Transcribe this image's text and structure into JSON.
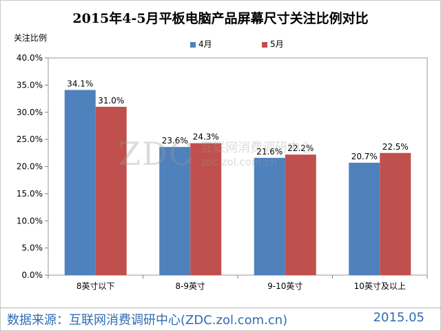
{
  "chart_data": {
    "type": "bar",
    "title": "2015年4-5月平板电脑产品屏幕尺寸关注比例对比",
    "ylabel": "关注比例",
    "xlabel": "",
    "categories": [
      "8英寸以下",
      "8-9英寸",
      "9-10英寸",
      "10英寸及以上"
    ],
    "series": [
      {
        "name": "4月",
        "values": [
          34.1,
          23.6,
          21.6,
          20.7
        ],
        "labels": [
          "34.1%",
          "23.6%",
          "21.6%",
          "20.7%"
        ],
        "color": "#4f81bd"
      },
      {
        "name": "5月",
        "values": [
          31.0,
          24.3,
          22.2,
          22.5
        ],
        "labels": [
          "31.0%",
          "24.3%",
          "22.2%",
          "22.5%"
        ],
        "color": "#c0504d"
      }
    ],
    "ylim": [
      0,
      40
    ],
    "yticks": [
      0,
      5,
      10,
      15,
      20,
      25,
      30,
      35,
      40
    ],
    "ytick_labels": [
      "0.0%",
      "5.0%",
      "10.0%",
      "15.0%",
      "20.0%",
      "25.0%",
      "30.0%",
      "35.0%",
      "40.0%"
    ],
    "grid": false,
    "legend_position": "top-center"
  },
  "footer": {
    "source": "数据来源：互联网消费调研中心(ZDC.zol.com.cn)",
    "date": "2015.05"
  },
  "watermark": {
    "logo": "ZDC",
    "name": "互联网消费调研中心",
    "url": "zdc.zol.com.cn"
  }
}
